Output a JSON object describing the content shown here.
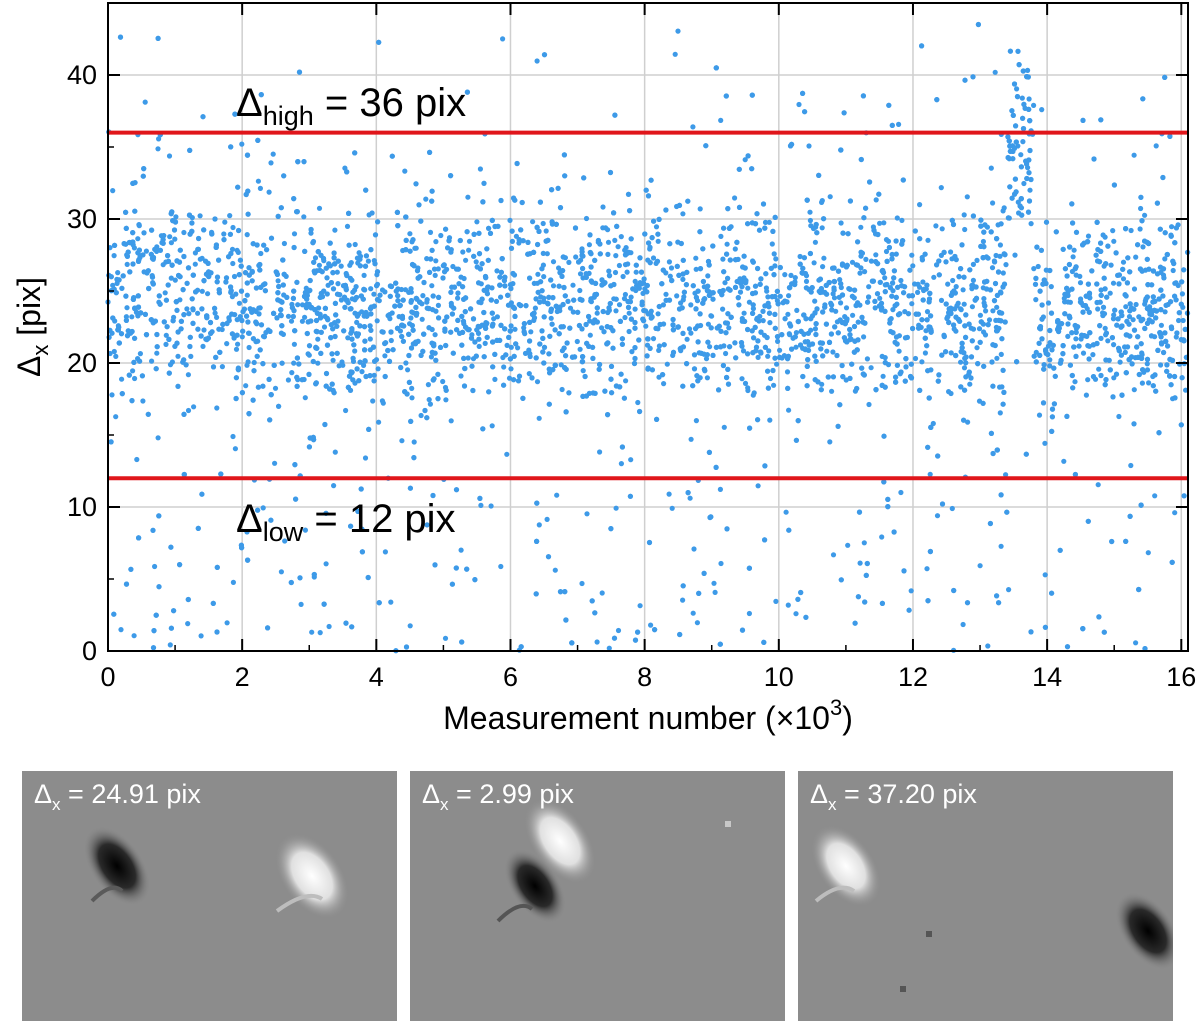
{
  "chart_data": {
    "type": "scatter",
    "xlabel": "Measurement number (×10",
    "xlabel_exp": "3",
    "xlabel_close": ")",
    "ylabel": "Δ",
    "ylabel_sub": "x",
    "ylabel_unit": " [pix]",
    "xlim": [
      0,
      16.1
    ],
    "ylim": [
      0,
      45
    ],
    "x_ticks": [
      0,
      2,
      4,
      6,
      8,
      10,
      12,
      14,
      16
    ],
    "y_ticks": [
      0,
      10,
      20,
      30,
      40
    ],
    "grid": true,
    "marker_color": "#3d9ae8",
    "threshold_color": "#e0161b",
    "n_points_approx": 16100,
    "typical_y_range": [
      12,
      36
    ],
    "thresholds": [
      {
        "value": 36,
        "label_main": "Δ",
        "label_sub": "high",
        "label_rest": " = 36 pix"
      },
      {
        "value": 12,
        "label_main": "Δ",
        "label_sub": "low",
        "label_rest": " = 12 pix"
      }
    ],
    "density_profile": [
      {
        "x_range": [
          0,
          2
        ],
        "y_center": 24.5
      },
      {
        "x_range": [
          2,
          13.4
        ],
        "y_center": 24.0
      },
      {
        "x_range": [
          13.4,
          13.8
        ],
        "y_center": 34.0
      },
      {
        "x_range": [
          13.8,
          16.1
        ],
        "y_center": 23.5
      }
    ]
  },
  "examples": [
    {
      "label": "Δ",
      "sub": "x",
      "value": " = 24.91 pix"
    },
    {
      "label": "Δ",
      "sub": "x",
      "value": " = 2.99 pix"
    },
    {
      "label": "Δ",
      "sub": "x",
      "value": " = 37.20 pix"
    }
  ]
}
